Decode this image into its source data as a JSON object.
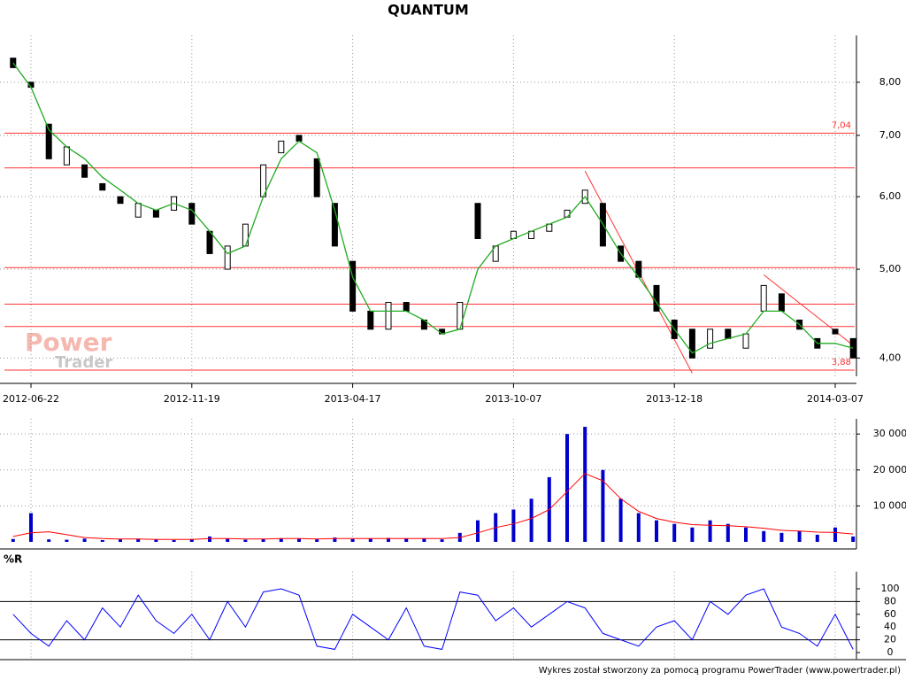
{
  "chart_data": [
    {
      "type": "candlestick",
      "title": "QUANTUM",
      "categories": [
        null,
        "2012-06-22",
        null,
        null,
        null,
        null,
        null,
        null,
        null,
        null,
        "2012-11-19",
        null,
        null,
        null,
        null,
        null,
        null,
        null,
        null,
        "2013-04-17",
        null,
        null,
        null,
        null,
        null,
        null,
        null,
        null,
        "2013-10-07",
        null,
        null,
        null,
        null,
        null,
        null,
        null,
        null,
        "2013-12-18",
        null,
        null,
        null,
        null,
        null,
        null,
        null,
        null,
        "2014-03-07",
        null
      ],
      "open": [
        8.5,
        8.0,
        7.2,
        6.5,
        6.5,
        6.2,
        6.0,
        5.7,
        5.8,
        5.8,
        5.9,
        5.5,
        5.0,
        5.3,
        6.0,
        6.7,
        7.0,
        6.6,
        5.9,
        5.1,
        4.5,
        4.3,
        4.6,
        4.4,
        4.3,
        4.3,
        5.9,
        5.1,
        5.4,
        5.4,
        5.5,
        5.7,
        5.9,
        5.9,
        5.3,
        5.1,
        4.8,
        4.4,
        4.3,
        4.1,
        4.3,
        4.1,
        4.5,
        4.7,
        4.4,
        4.2,
        4.3,
        4.2
      ],
      "close": [
        8.3,
        7.9,
        6.6,
        6.8,
        6.3,
        6.1,
        5.9,
        5.9,
        5.7,
        6.0,
        5.6,
        5.2,
        5.3,
        5.6,
        6.5,
        6.9,
        6.9,
        6.0,
        5.3,
        4.5,
        4.3,
        4.6,
        4.5,
        4.3,
        4.25,
        4.6,
        5.4,
        5.3,
        5.5,
        5.5,
        5.6,
        5.8,
        6.1,
        5.3,
        5.1,
        4.9,
        4.5,
        4.2,
        4.0,
        4.3,
        4.2,
        4.25,
        4.8,
        4.5,
        4.3,
        4.1,
        4.25,
        4.0
      ],
      "up_color": "#ffffff",
      "down_color": "#000000",
      "ma": {
        "color": "#22aa22",
        "values": [
          8.4,
          7.9,
          7.1,
          6.8,
          6.6,
          6.3,
          6.1,
          5.9,
          5.8,
          5.9,
          5.8,
          5.5,
          5.2,
          5.3,
          6.0,
          6.6,
          6.9,
          6.7,
          5.8,
          4.9,
          4.5,
          4.5,
          4.5,
          4.4,
          4.25,
          4.3,
          5.0,
          5.3,
          5.4,
          5.5,
          5.6,
          5.7,
          6.0,
          5.6,
          5.2,
          4.9,
          4.6,
          4.3,
          4.05,
          4.15,
          4.2,
          4.25,
          4.5,
          4.5,
          4.35,
          4.15,
          4.15,
          4.1
        ]
      },
      "ylim": [
        3.82,
        8.9
      ],
      "log_scale": true,
      "grid": true,
      "yticks": [
        {
          "value": 4,
          "label": "4,00"
        },
        {
          "value": 5,
          "label": "5,00"
        },
        {
          "value": 6,
          "label": "6,00"
        },
        {
          "value": 7,
          "label": "7,00"
        },
        {
          "value": 8,
          "label": "8,00"
        }
      ],
      "levels": [
        {
          "value": 7.04,
          "label": "7,04"
        },
        {
          "value": 3.88,
          "label": "3,88"
        },
        6.45,
        5.02,
        4.58,
        4.33
      ],
      "level_color": "#ff3333",
      "trend_lines": [
        {
          "x": [
            32,
            38
          ],
          "y": [
            6.4,
            3.85
          ]
        },
        {
          "x": [
            42,
            47
          ],
          "y": [
            4.93,
            4.13
          ]
        }
      ]
    },
    {
      "type": "bar",
      "color": "#0000cc",
      "values": [
        800,
        8000,
        700,
        600,
        900,
        500,
        700,
        900,
        600,
        500,
        800,
        1500,
        900,
        600,
        800,
        1000,
        900,
        700,
        1200,
        800,
        900,
        1100,
        900,
        1000,
        700,
        2500,
        6000,
        8000,
        9000,
        12000,
        18000,
        30000,
        32000,
        20000,
        12000,
        8000,
        6000,
        5000,
        4000,
        6000,
        5000,
        4000,
        3000,
        2500,
        3000,
        2000,
        4000,
        1500
      ],
      "average": {
        "color": "#ff0000",
        "values": [
          1500,
          2500,
          2800,
          2000,
          1200,
          900,
          800,
          800,
          700,
          700,
          700,
          900,
          900,
          800,
          800,
          900,
          900,
          800,
          900,
          900,
          900,
          900,
          900,
          900,
          900,
          1200,
          2500,
          4000,
          5000,
          6500,
          9000,
          14000,
          19000,
          17000,
          12000,
          8500,
          6500,
          5500,
          4800,
          4600,
          4500,
          4200,
          3800,
          3200,
          3000,
          2700,
          2600,
          2200
        ]
      },
      "ylim": [
        0,
        33000
      ],
      "grid": true,
      "yticks": [
        {
          "value": 10000,
          "label": "10 000"
        },
        {
          "value": 20000,
          "label": "20 000"
        },
        {
          "value": 30000,
          "label": "30 000"
        }
      ]
    },
    {
      "type": "line",
      "title": "%R",
      "color": "#0000ff",
      "values": [
        60,
        30,
        10,
        50,
        20,
        70,
        40,
        90,
        50,
        30,
        60,
        20,
        80,
        40,
        95,
        100,
        90,
        10,
        5,
        60,
        40,
        20,
        70,
        10,
        5,
        95,
        90,
        50,
        70,
        40,
        60,
        80,
        70,
        30,
        20,
        10,
        40,
        50,
        20,
        80,
        60,
        90,
        100,
        40,
        30,
        10,
        60,
        5
      ],
      "ylim": [
        -10,
        120
      ],
      "yticks": [
        0,
        20,
        40,
        60,
        80,
        100
      ],
      "levels": [
        20,
        80
      ]
    }
  ],
  "watermark": [
    "Power",
    "Trader"
  ],
  "footer": "Wykres został stworzony za pomocą programu PowerTrader (www.powertrader.pl)"
}
